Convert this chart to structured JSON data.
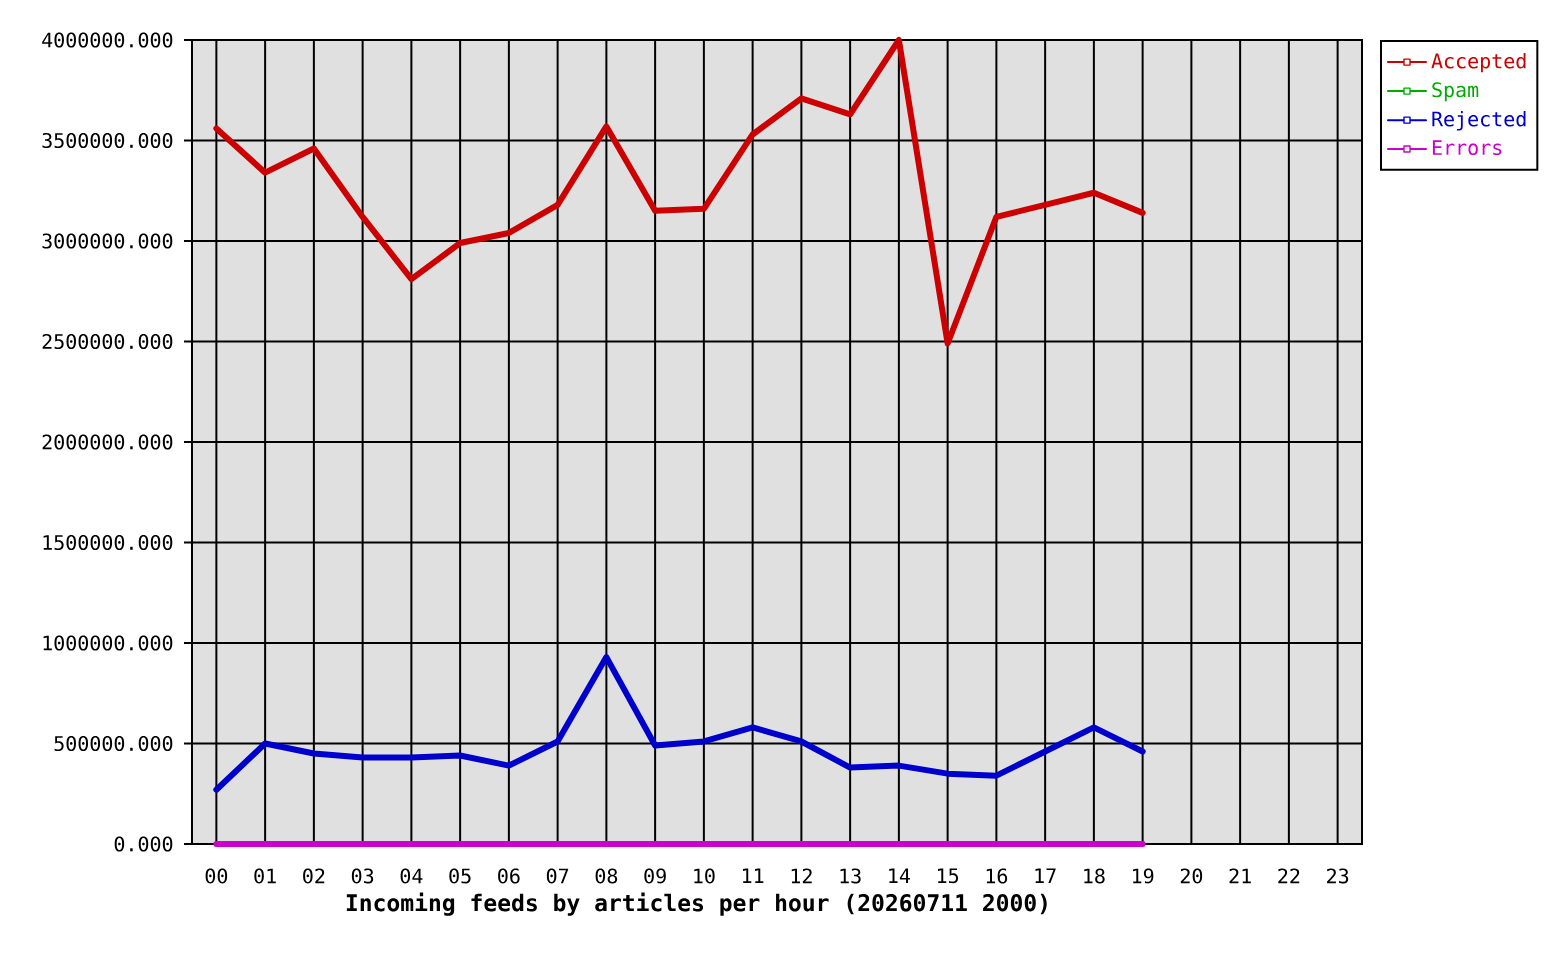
{
  "chart_data": {
    "type": "line",
    "xlabel": "Incoming feeds by articles per hour (20260711 2000)",
    "categories": [
      "00",
      "01",
      "02",
      "03",
      "04",
      "05",
      "06",
      "07",
      "08",
      "09",
      "10",
      "11",
      "12",
      "13",
      "14",
      "15",
      "16",
      "17",
      "18",
      "19",
      "20",
      "21",
      "22",
      "23"
    ],
    "series": [
      {
        "name": "Accepted",
        "color": "#cc0000",
        "values": [
          3560000,
          3340000,
          3460000,
          3120000,
          2810000,
          2990000,
          3040000,
          3180000,
          3570000,
          3150000,
          3160000,
          3530000,
          3710000,
          3630000,
          4000000,
          2490000,
          3120000,
          3180000,
          3240000,
          3140000,
          null,
          null,
          null,
          null
        ]
      },
      {
        "name": "Spam",
        "color": "#00aa00",
        "values": [
          null,
          null,
          null,
          null,
          null,
          null,
          null,
          null,
          null,
          null,
          null,
          null,
          null,
          null,
          null,
          null,
          null,
          null,
          null,
          null,
          null,
          null,
          null,
          null
        ]
      },
      {
        "name": "Rejected",
        "color": "#0000cc",
        "values": [
          270000,
          500000,
          450000,
          430000,
          430000,
          440000,
          390000,
          510000,
          930000,
          490000,
          510000,
          580000,
          510000,
          380000,
          390000,
          350000,
          340000,
          460000,
          580000,
          460000,
          null,
          null,
          null,
          null
        ]
      },
      {
        "name": "Errors",
        "color": "#cc00cc",
        "values": [
          0,
          0,
          0,
          0,
          0,
          0,
          0,
          0,
          0,
          0,
          0,
          0,
          0,
          0,
          0,
          0,
          0,
          0,
          0,
          0,
          null,
          null,
          null,
          null
        ]
      }
    ],
    "ylim": [
      0,
      4000000
    ],
    "yticks": [
      {
        "value": 0,
        "label": "0.000"
      },
      {
        "value": 500000,
        "label": "500000.000"
      },
      {
        "value": 1000000,
        "label": "1000000.000"
      },
      {
        "value": 1500000,
        "label": "1500000.000"
      },
      {
        "value": 2000000,
        "label": "2000000.000"
      },
      {
        "value": 2500000,
        "label": "2500000.000"
      },
      {
        "value": 3000000,
        "label": "3000000.000"
      },
      {
        "value": 3500000,
        "label": "3500000.000"
      },
      {
        "value": 4000000,
        "label": "4000000.000"
      }
    ],
    "grid": true,
    "legend": "top right"
  }
}
